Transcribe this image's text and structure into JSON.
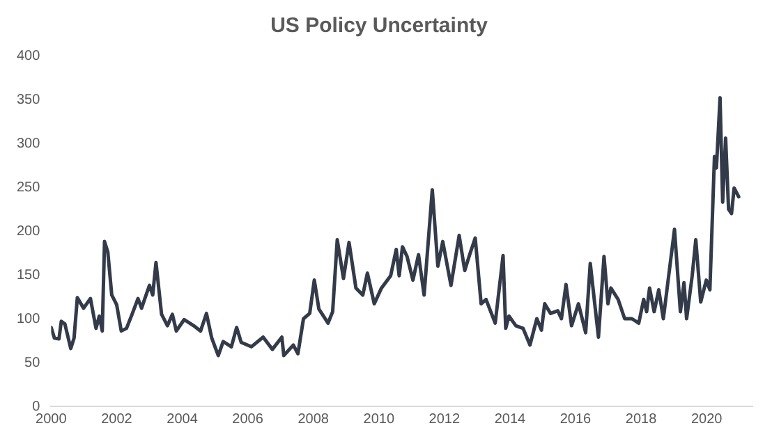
{
  "chart_data": {
    "type": "line",
    "title": "US Policy Uncertainty",
    "xlim": [
      2000,
      2021.4
    ],
    "xticks": [
      2000,
      2002,
      2004,
      2006,
      2008,
      2010,
      2012,
      2014,
      2016,
      2018,
      2020
    ],
    "ylim": [
      0,
      400
    ],
    "yticks": [
      0,
      50,
      100,
      150,
      200,
      250,
      300,
      350,
      400
    ],
    "grid": false,
    "legend": false,
    "marker": "none",
    "line_style": "solid",
    "series": [
      {
        "color": "#333b4a",
        "x": [
          2000.0,
          2000.1,
          2000.24,
          2000.31,
          2000.42,
          2000.6,
          2000.7,
          2000.8,
          2000.99,
          2001.2,
          2001.37,
          2001.47,
          2001.56,
          2001.63,
          2001.73,
          2001.85,
          2002.0,
          2002.14,
          2002.3,
          2002.47,
          2002.65,
          2002.76,
          2002.86,
          2003.0,
          2003.1,
          2003.2,
          2003.37,
          2003.55,
          2003.7,
          2003.82,
          2004.06,
          2004.35,
          2004.56,
          2004.74,
          2004.9,
          2005.1,
          2005.25,
          2005.5,
          2005.66,
          2005.8,
          2006.11,
          2006.47,
          2006.75,
          2007.04,
          2007.1,
          2007.39,
          2007.53,
          2007.7,
          2007.89,
          2008.03,
          2008.17,
          2008.45,
          2008.59,
          2008.73,
          2008.92,
          2009.09,
          2009.3,
          2009.51,
          2009.65,
          2009.86,
          2010.08,
          2010.36,
          2010.53,
          2010.62,
          2010.72,
          2010.86,
          2011.04,
          2011.21,
          2011.38,
          2011.63,
          2011.8,
          2011.95,
          2012.2,
          2012.45,
          2012.62,
          2012.77,
          2012.94,
          2013.12,
          2013.27,
          2013.55,
          2013.79,
          2013.87,
          2013.97,
          2014.18,
          2014.4,
          2014.61,
          2014.82,
          2014.96,
          2015.06,
          2015.24,
          2015.46,
          2015.57,
          2015.71,
          2015.88,
          2016.09,
          2016.31,
          2016.45,
          2016.7,
          2016.87,
          2016.99,
          2017.08,
          2017.3,
          2017.5,
          2017.72,
          2017.93,
          2018.08,
          2018.17,
          2018.26,
          2018.4,
          2018.54,
          2018.68,
          2019.02,
          2019.2,
          2019.31,
          2019.39,
          2019.56,
          2019.67,
          2019.82,
          2019.99,
          2020.1,
          2020.24,
          2020.3,
          2020.41,
          2020.49,
          2020.58,
          2020.67,
          2020.76,
          2020.84,
          2020.98
        ],
        "values": [
          90,
          78,
          77,
          97,
          94,
          66,
          78,
          124,
          112,
          123,
          89,
          103,
          86,
          188,
          176,
          127,
          116,
          86,
          89,
          105,
          123,
          112,
          123,
          138,
          127,
          164,
          105,
          92,
          105,
          86,
          99,
          92,
          86,
          106,
          78,
          58,
          74,
          68,
          90,
          73,
          68,
          79,
          65,
          79,
          58,
          70,
          60,
          100,
          106,
          144,
          111,
          95,
          108,
          190,
          146,
          187,
          135,
          127,
          152,
          117,
          135,
          149,
          179,
          149,
          182,
          171,
          144,
          173,
          127,
          247,
          160,
          188,
          138,
          195,
          155,
          173,
          192,
          117,
          122,
          95,
          172,
          89,
          103,
          92,
          89,
          70,
          100,
          87,
          117,
          106,
          109,
          100,
          139,
          92,
          117,
          84,
          163,
          79,
          171,
          117,
          135,
          122,
          100,
          100,
          95,
          122,
          108,
          135,
          108,
          133,
          100,
          202,
          108,
          141,
          100,
          149,
          190,
          119,
          144,
          133,
          285,
          272,
          352,
          233,
          306,
          225,
          220,
          249,
          239
        ]
      }
    ]
  }
}
